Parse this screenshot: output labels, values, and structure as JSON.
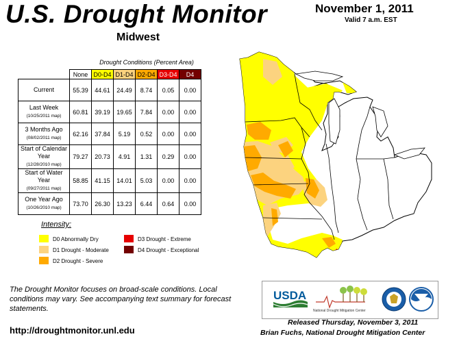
{
  "header": {
    "title": "U.S. Drought Monitor",
    "region": "Midwest",
    "date": "November 1, 2011",
    "valid": "Valid 7 a.m. EST"
  },
  "table": {
    "caption": "Drought Conditions (Percent Area)",
    "columns": [
      "None",
      "D0-D4",
      "D1-D4",
      "D2-D4",
      "D3-D4",
      "D4"
    ],
    "column_colors": [
      "#ffffff",
      "#ffff00",
      "#fcd37f",
      "#ffaa00",
      "#e60000",
      "#730000"
    ],
    "rows": [
      {
        "label": "Current",
        "sub": "",
        "values": [
          "55.39",
          "44.61",
          "24.49",
          "8.74",
          "0.05",
          "0.00"
        ]
      },
      {
        "label": "Last Week",
        "sub": "(10/25/2011 map)",
        "values": [
          "60.81",
          "39.19",
          "19.65",
          "7.84",
          "0.00",
          "0.00"
        ]
      },
      {
        "label": "3 Months Ago",
        "sub": "(08/02/2011 map)",
        "values": [
          "62.16",
          "37.84",
          "5.19",
          "0.52",
          "0.00",
          "0.00"
        ]
      },
      {
        "label": "Start of Calendar Year",
        "sub": "(12/28/2010 map)",
        "values": [
          "79.27",
          "20.73",
          "4.91",
          "1.31",
          "0.29",
          "0.00"
        ]
      },
      {
        "label": "Start of Water Year",
        "sub": "(09/27/2011 map)",
        "values": [
          "58.85",
          "41.15",
          "14.01",
          "5.03",
          "0.00",
          "0.00"
        ]
      },
      {
        "label": "One Year Ago",
        "sub": "(10/26/2010 map)",
        "values": [
          "73.70",
          "26.30",
          "13.23",
          "6.44",
          "0.64",
          "0.00"
        ]
      }
    ]
  },
  "legend": {
    "title": "Intensity:",
    "items": [
      {
        "label": "D0 Abnormally Dry",
        "color": "#ffff00"
      },
      {
        "label": "D1 Drought - Moderate",
        "color": "#fcd37f"
      },
      {
        "label": "D2 Drought - Severe",
        "color": "#ffaa00"
      },
      {
        "label": "D3 Drought - Extreme",
        "color": "#e60000"
      },
      {
        "label": "D4 Drought - Exceptional",
        "color": "#730000"
      }
    ]
  },
  "footer": {
    "note": "The Drought Monitor focuses on broad-scale conditions. Local conditions may vary. See accompanying text summary for forecast statements.",
    "url": "http://droughtmonitor.unl.edu",
    "released": "Released Thursday, November 3, 2011",
    "author": "Brian Fuchs, National Drought Mitigation Center",
    "logos": {
      "usda": "USDA",
      "ndmc": "National Drought Mitigation Center"
    }
  }
}
